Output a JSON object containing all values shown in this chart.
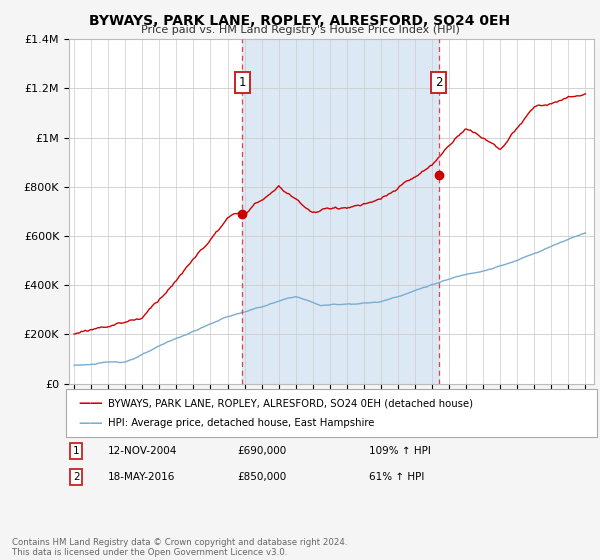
{
  "title": "BYWAYS, PARK LANE, ROPLEY, ALRESFORD, SO24 0EH",
  "subtitle": "Price paid vs. HM Land Registry's House Price Index (HPI)",
  "ylim": [
    0,
    1400000
  ],
  "yticks": [
    0,
    200000,
    400000,
    600000,
    800000,
    1000000,
    1200000,
    1400000
  ],
  "ytick_labels": [
    "£0",
    "£200K",
    "£400K",
    "£600K",
    "£800K",
    "£1M",
    "£1.2M",
    "£1.4M"
  ],
  "xmin": 1994.7,
  "xmax": 2025.5,
  "sale1_x": 2004.87,
  "sale1_y": 690000,
  "sale1_label": "1",
  "sale1_date": "12-NOV-2004",
  "sale1_price": "£690,000",
  "sale1_hpi": "109% ↑ HPI",
  "sale2_x": 2016.38,
  "sale2_y": 850000,
  "sale2_label": "2",
  "sale2_date": "18-MAY-2016",
  "sale2_price": "£850,000",
  "sale2_hpi": "61% ↑ HPI",
  "legend_label1": "BYWAYS, PARK LANE, ROPLEY, ALRESFORD, SO24 0EH (detached house)",
  "legend_label2": "HPI: Average price, detached house, East Hampshire",
  "footer": "Contains HM Land Registry data © Crown copyright and database right 2024.\nThis data is licensed under the Open Government Licence v3.0.",
  "line1_color": "#cc0000",
  "line2_color": "#7aadcf",
  "shade_color": "#dde8f5",
  "vline_color": "#dd4444",
  "bg_color": "#f5f5f5",
  "plot_bg": "#ffffff"
}
